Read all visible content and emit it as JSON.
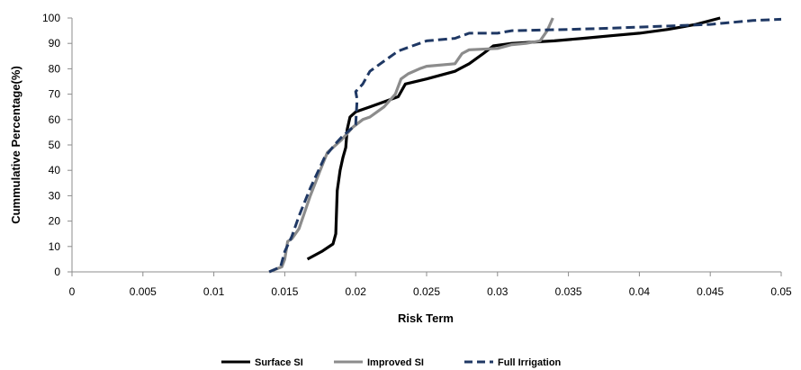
{
  "chart_data": {
    "type": "line",
    "title": "",
    "xlabel": "Risk Term",
    "ylabel": "Cummulative Percentage(%)",
    "xlim": [
      0,
      0.05
    ],
    "ylim": [
      0,
      100
    ],
    "x_ticks": [
      "0",
      "0.005",
      "0.01",
      "0.015",
      "0.02",
      "0.025",
      "0.03",
      "0.035",
      "0.04",
      "0.045",
      "0.05"
    ],
    "y_ticks": [
      "0",
      "10",
      "20",
      "30",
      "40",
      "50",
      "60",
      "70",
      "80",
      "90",
      "100"
    ],
    "grid": false,
    "legend_position": "bottom",
    "series": [
      {
        "name": "Surface SI",
        "color": "#000000",
        "style": "solid",
        "points": [
          [
            0.0166,
            5
          ],
          [
            0.0176,
            8
          ],
          [
            0.0184,
            11
          ],
          [
            0.0186,
            15
          ],
          [
            0.0187,
            32
          ],
          [
            0.0189,
            40
          ],
          [
            0.0191,
            45
          ],
          [
            0.0193,
            49
          ],
          [
            0.0194,
            56
          ],
          [
            0.0196,
            61
          ],
          [
            0.02,
            63
          ],
          [
            0.021,
            65
          ],
          [
            0.022,
            67
          ],
          [
            0.023,
            69
          ],
          [
            0.0235,
            74
          ],
          [
            0.025,
            76
          ],
          [
            0.027,
            79
          ],
          [
            0.028,
            82
          ],
          [
            0.029,
            86
          ],
          [
            0.0297,
            89
          ],
          [
            0.031,
            90
          ],
          [
            0.034,
            91
          ],
          [
            0.036,
            92
          ],
          [
            0.038,
            93
          ],
          [
            0.04,
            94
          ],
          [
            0.042,
            95.5
          ],
          [
            0.044,
            97.5
          ],
          [
            0.0457,
            100
          ]
        ]
      },
      {
        "name": "Improved SI",
        "color": "#8c8c8c",
        "style": "solid",
        "points": [
          [
            0.0139,
            0
          ],
          [
            0.0148,
            2
          ],
          [
            0.015,
            5
          ],
          [
            0.0152,
            12
          ],
          [
            0.0155,
            13
          ],
          [
            0.016,
            17
          ],
          [
            0.0168,
            30
          ],
          [
            0.0175,
            40
          ],
          [
            0.018,
            47
          ],
          [
            0.019,
            52
          ],
          [
            0.0198,
            57
          ],
          [
            0.0205,
            60
          ],
          [
            0.021,
            61
          ],
          [
            0.022,
            65
          ],
          [
            0.0228,
            70
          ],
          [
            0.0232,
            76
          ],
          [
            0.0237,
            78
          ],
          [
            0.0245,
            80
          ],
          [
            0.025,
            81
          ],
          [
            0.027,
            82
          ],
          [
            0.0275,
            86
          ],
          [
            0.028,
            87.5
          ],
          [
            0.03,
            88
          ],
          [
            0.031,
            89.5
          ],
          [
            0.032,
            90
          ],
          [
            0.033,
            91
          ],
          [
            0.0335,
            95
          ],
          [
            0.0339,
            100
          ]
        ]
      },
      {
        "name": "Full Irrigation",
        "color": "#1f3864",
        "style": "dashed",
        "points": [
          [
            0.0139,
            0
          ],
          [
            0.0147,
            2
          ],
          [
            0.015,
            8
          ],
          [
            0.0155,
            14
          ],
          [
            0.016,
            22
          ],
          [
            0.0168,
            33
          ],
          [
            0.0178,
            45
          ],
          [
            0.0185,
            50
          ],
          [
            0.019,
            53
          ],
          [
            0.0196,
            56
          ],
          [
            0.02,
            58
          ],
          [
            0.0201,
            68
          ],
          [
            0.02,
            71
          ],
          [
            0.0205,
            74
          ],
          [
            0.021,
            79
          ],
          [
            0.022,
            83
          ],
          [
            0.023,
            87
          ],
          [
            0.024,
            89
          ],
          [
            0.025,
            91
          ],
          [
            0.027,
            92
          ],
          [
            0.028,
            94
          ],
          [
            0.03,
            94
          ],
          [
            0.031,
            95
          ],
          [
            0.035,
            95.5
          ],
          [
            0.038,
            96
          ],
          [
            0.045,
            97.5
          ],
          [
            0.046,
            98
          ],
          [
            0.048,
            99
          ],
          [
            0.05,
            99.5
          ]
        ]
      }
    ]
  }
}
